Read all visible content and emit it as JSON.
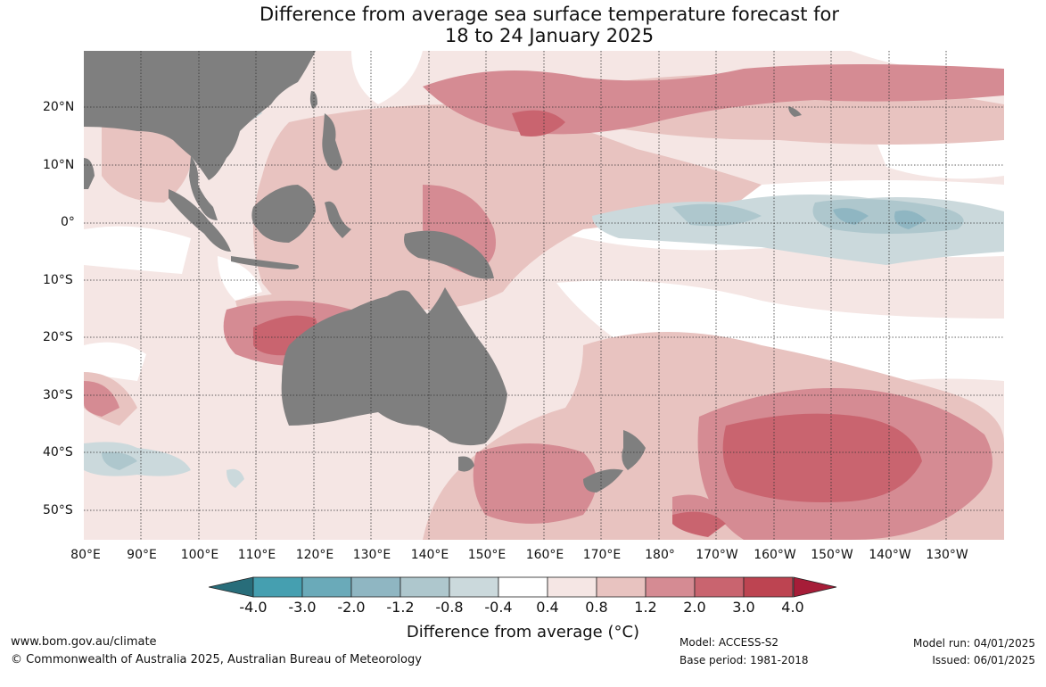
{
  "title_line1": "Difference from average sea surface temperature forecast for",
  "title_line2": "18 to 24 January 2025",
  "lat_labels": [
    "20°N",
    "10°N",
    "0°",
    "10°S",
    "20°S",
    "30°S",
    "40°S",
    "50°S"
  ],
  "lon_labels": [
    "80°E",
    "90°E",
    "100°E",
    "110°E",
    "120°E",
    "130°E",
    "140°E",
    "150°E",
    "160°E",
    "170°E",
    "180°",
    "170°W",
    "160°W",
    "150°W",
    "140°W",
    "130°W"
  ],
  "colorbar": {
    "ticks": [
      "-4.0",
      "-3.0",
      "-2.0",
      "-1.2",
      "-0.8",
      "-0.4",
      "0.4",
      "0.8",
      "1.2",
      "2.0",
      "3.0",
      "4.0"
    ],
    "colors": [
      "#286d7a",
      "#459fb0",
      "#6aaab9",
      "#8fb6c2",
      "#aec7cd",
      "#cbd9dc",
      "#ffffff",
      "#f5e6e4",
      "#e8c3c0",
      "#d58b93",
      "#c9646f",
      "#bd4451",
      "#a61d38"
    ],
    "label": "Difference from average (°C)"
  },
  "land_color": "#7f7f7f",
  "footer": {
    "url": "www.bom.gov.au/climate",
    "copyright": "© Commonwealth of Australia 2025, Australian Bureau of Meteorology",
    "model": "Model: ACCESS-S2",
    "base_period": "Base period: 1981-2018",
    "model_run": "Model run: 04/01/2025",
    "issued": "Issued: 06/01/2025"
  }
}
